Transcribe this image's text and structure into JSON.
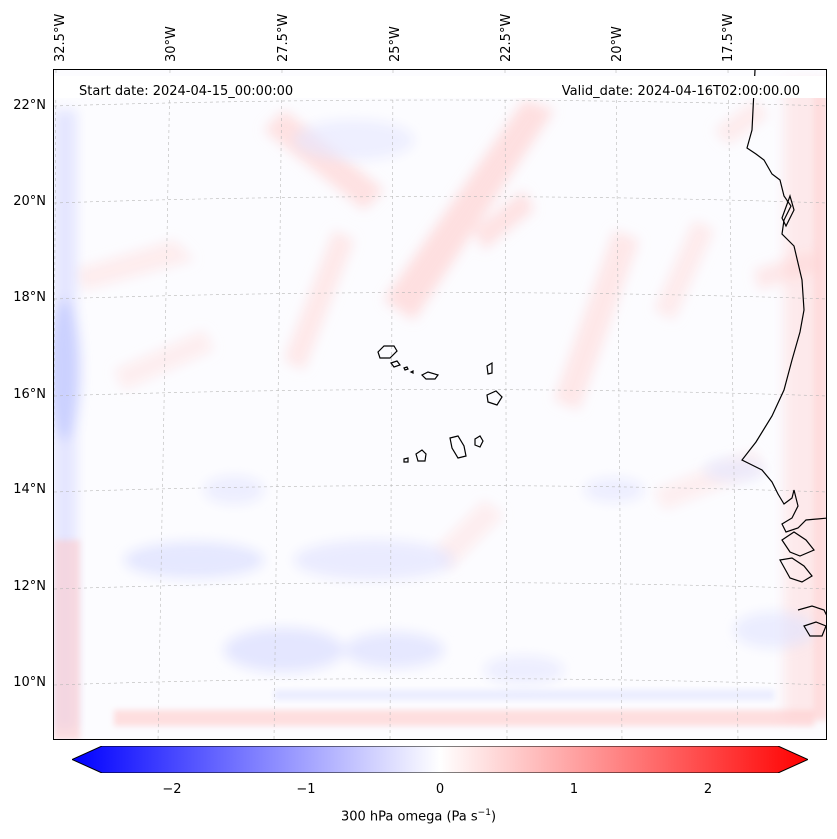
{
  "map": {
    "start_date": "Start date: 2024-04-15_00:00:00",
    "valid_date": "Valid_date: 2024-04-16T02:00:00.00",
    "longitude_labels": [
      "32.5°W",
      "30°W",
      "27.5°W",
      "25°W",
      "22.5°W",
      "20°W",
      "17.5°W"
    ],
    "latitude_labels": [
      "22°N",
      "20°N",
      "18°N",
      "16°N",
      "14°N",
      "12°N",
      "10°N"
    ],
    "field": "300 hPa vertical velocity (omega)",
    "features": [
      "Cape Verde islands",
      "West African coastline"
    ],
    "colormap": "bwr",
    "colors": {
      "negative": "#0000ff",
      "zero": "#ffffff",
      "positive": "#ff0000",
      "coastline": "#000000",
      "grid": "#b0b0b0"
    }
  },
  "colorbar": {
    "ticks": [
      "−2",
      "−1",
      "0",
      "1",
      "2"
    ],
    "min": -2.6,
    "max": 2.6,
    "label_prefix": "300 hPa omega (Pa s",
    "label_exp": "−1",
    "label_suffix": ")"
  }
}
